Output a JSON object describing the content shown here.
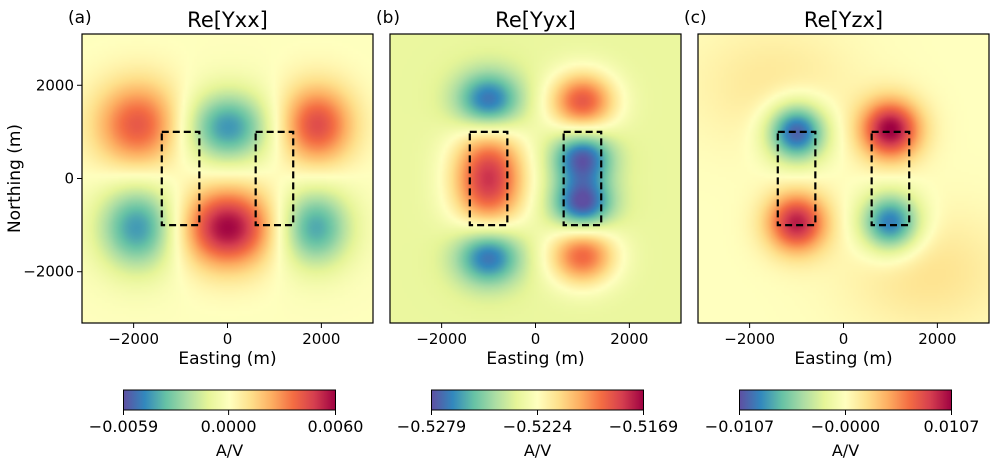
{
  "chart_data": [
    {
      "type": "heatmap",
      "panel_label": "(a)",
      "title": "Re[Yxx]",
      "xlabel": "Easting (m)",
      "ylabel": "Northing (m)",
      "xlim": [
        -3100,
        3100
      ],
      "ylim": [
        -3100,
        3100
      ],
      "xticks": [
        -2000,
        0,
        2000
      ],
      "yticks": [
        -2000,
        0,
        2000
      ],
      "xtick_labels": [
        "−2000",
        "0",
        "2000"
      ],
      "ytick_labels": [
        "−2000",
        "0",
        "2000"
      ],
      "colormap": "Spectral_r",
      "colorbar": {
        "min": -0.0059,
        "max": 0.006,
        "ticks": [
          -0.0059,
          0.0,
          0.006
        ],
        "tick_labels": [
          "−0.0059",
          "0.0000",
          "0.0060"
        ],
        "label": "A/V"
      },
      "field": {
        "background": 0.0,
        "lobes": [
          {
            "x": -1900,
            "y": 1150,
            "amp": 0.7,
            "sx": 650,
            "sy": 650
          },
          {
            "x": 0,
            "y": 1100,
            "amp": -0.75,
            "sx": 650,
            "sy": 550
          },
          {
            "x": 1900,
            "y": 1150,
            "amp": 0.75,
            "sx": 550,
            "sy": 600
          },
          {
            "x": -1900,
            "y": -1050,
            "amp": -0.75,
            "sx": 600,
            "sy": 650
          },
          {
            "x": 0,
            "y": -1050,
            "amp": 1.0,
            "sx": 700,
            "sy": 600
          },
          {
            "x": 1850,
            "y": -1050,
            "amp": -0.7,
            "sx": 550,
            "sy": 600
          }
        ]
      },
      "boxes": [
        {
          "x0": -1400,
          "x1": -600,
          "y0": -1000,
          "y1": 1000
        },
        {
          "x0": 600,
          "x1": 1400,
          "y0": -1000,
          "y1": 1000
        }
      ]
    },
    {
      "type": "heatmap",
      "panel_label": "(b)",
      "title": "Re[Yyx]",
      "xlabel": "Easting (m)",
      "ylabel": "",
      "xlim": [
        -3100,
        3100
      ],
      "ylim": [
        -3100,
        3100
      ],
      "xticks": [
        -2000,
        0,
        2000
      ],
      "xtick_labels": [
        "−2000",
        "0",
        "2000"
      ],
      "colormap": "Spectral_r",
      "colorbar": {
        "min": -0.5279,
        "max": -0.5169,
        "ticks": [
          -0.5279,
          -0.5224,
          -0.5169
        ],
        "tick_labels": [
          "−0.5279",
          "−0.5224",
          "−0.5169"
        ],
        "label": "A/V"
      },
      "field": {
        "background": -0.5233,
        "lobes": [
          {
            "x": -1000,
            "y": 1650,
            "amp": -0.8,
            "sx": 500,
            "sy": 450
          },
          {
            "x": 1000,
            "y": 1650,
            "amp": 0.85,
            "sx": 500,
            "sy": 450
          },
          {
            "x": -1000,
            "y": 0,
            "amp": 1.0,
            "sx": 550,
            "sy": 800
          },
          {
            "x": 1000,
            "y": 450,
            "amp": -0.8,
            "sx": 450,
            "sy": 400
          },
          {
            "x": 1000,
            "y": -550,
            "amp": -0.85,
            "sx": 450,
            "sy": 400
          },
          {
            "x": -1000,
            "y": -1650,
            "amp": -0.8,
            "sx": 500,
            "sy": 450
          },
          {
            "x": 1000,
            "y": -1650,
            "amp": 0.8,
            "sx": 500,
            "sy": 450
          }
        ]
      },
      "boxes": [
        {
          "x0": -1400,
          "x1": -600,
          "y0": -1000,
          "y1": 1000
        },
        {
          "x0": 600,
          "x1": 1400,
          "y0": -1000,
          "y1": 1000
        }
      ]
    },
    {
      "type": "heatmap",
      "panel_label": "(c)",
      "title": "Re[Yzx]",
      "xlabel": "Easting (m)",
      "ylabel": "",
      "xlim": [
        -3100,
        3100
      ],
      "ylim": [
        -3100,
        3100
      ],
      "xticks": [
        -2000,
        0,
        2000
      ],
      "xtick_labels": [
        "−2000",
        "0",
        "2000"
      ],
      "colormap": "Spectral_r",
      "colorbar": {
        "min": -0.0107,
        "max": 0.0107,
        "ticks": [
          -0.0107,
          0.0,
          0.0107
        ],
        "tick_labels": [
          "−0.0107",
          "−0.0000",
          "0.0107"
        ],
        "label": "A/V"
      },
      "field": {
        "background": 0.0,
        "lobes": [
          {
            "x": -1000,
            "y": 1000,
            "amp": -1.0,
            "sx": 450,
            "sy": 450
          },
          {
            "x": 1000,
            "y": 1050,
            "amp": 1.0,
            "sx": 450,
            "sy": 450
          },
          {
            "x": -1000,
            "y": -950,
            "amp": 0.9,
            "sx": 450,
            "sy": 450
          },
          {
            "x": 1000,
            "y": -950,
            "amp": -0.9,
            "sx": 450,
            "sy": 450
          },
          {
            "x": -1500,
            "y": 2000,
            "amp": 0.15,
            "sx": 1200,
            "sy": 900
          },
          {
            "x": 1800,
            "y": -2000,
            "amp": 0.18,
            "sx": 1200,
            "sy": 900
          }
        ]
      },
      "boxes": [
        {
          "x0": -1400,
          "x1": -600,
          "y0": -1000,
          "y1": 1000
        },
        {
          "x0": 600,
          "x1": 1400,
          "y0": -1000,
          "y1": 1000
        }
      ]
    }
  ]
}
